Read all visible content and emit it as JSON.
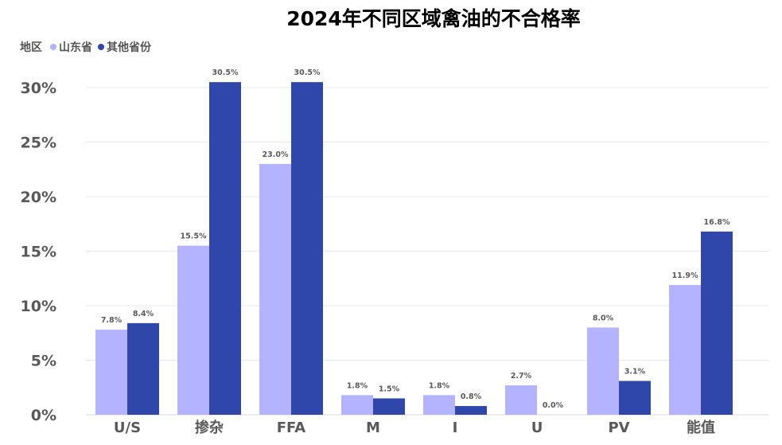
{
  "chart_data": {
    "type": "bar",
    "title": "2024年不同区域禽油的不合格率",
    "legend_title": "地区",
    "legend_position": "top-left",
    "categories": [
      "U/S",
      "掺杂",
      "FFA",
      "M",
      "I",
      "U",
      "PV",
      "能值"
    ],
    "series": [
      {
        "name": "山东省",
        "color": "#b3b3ff",
        "values": [
          7.8,
          15.5,
          23.0,
          1.8,
          1.8,
          2.7,
          8.0,
          11.9
        ],
        "labels": [
          "7.8%",
          "15.5%",
          "23.0%",
          "1.8%",
          "1.8%",
          "2.7%",
          "8.0%",
          "11.9%"
        ]
      },
      {
        "name": "其他省份",
        "color": "#2f47aa",
        "values": [
          8.4,
          30.5,
          30.5,
          1.5,
          0.8,
          0.0,
          3.1,
          16.8
        ],
        "labels": [
          "8.4%",
          "30.5%",
          "30.5%",
          "1.5%",
          "0.8%",
          "0.0%",
          "3.1%",
          "16.8%"
        ]
      }
    ],
    "yticks": [
      "0%",
      "5%",
      "10%",
      "15%",
      "20%",
      "25%",
      "30%"
    ],
    "ylim": [
      0,
      30
    ],
    "grid": true
  }
}
